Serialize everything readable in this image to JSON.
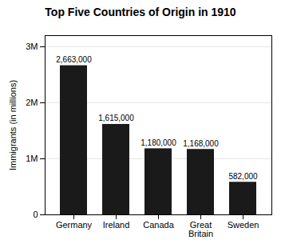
{
  "chart_data": {
    "type": "bar",
    "title": "Top Five Countries of Origin in 1910",
    "categories": [
      "Germany",
      "Ireland",
      "Canada",
      "Great\nBritain",
      "Sweden"
    ],
    "values": [
      2663000,
      1615000,
      1180000,
      1168000,
      582000
    ],
    "value_labels": [
      "2,663,000",
      "1,615,000",
      "1,180,000",
      "1,168,000",
      "582,000"
    ],
    "data_labels": true,
    "color": "#1a1a1a",
    "ylabel": "Immigrants (in millions)",
    "ylim": [
      0,
      3200000
    ],
    "yticks": [
      0,
      {
        "value": 1000000,
        "label": "1M"
      },
      {
        "value": 2000000,
        "label": "2M"
      },
      {
        "value": 3000000,
        "label": "3M"
      }
    ],
    "grid": true
  }
}
